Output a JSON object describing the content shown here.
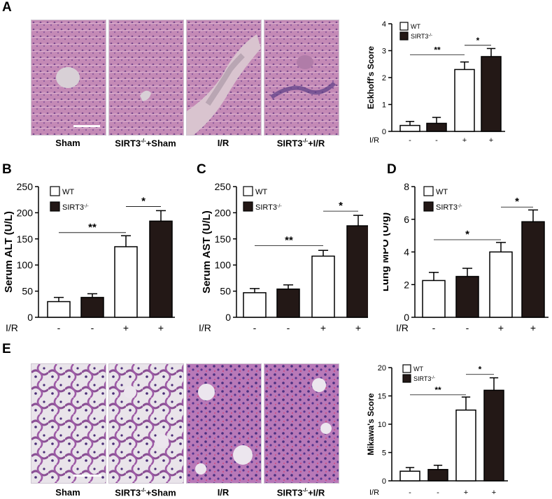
{
  "colors": {
    "wt_fill": "#ffffff",
    "ko_fill": "#231816",
    "he_liver": "#b55a9c",
    "he_lung": "#ede4ec"
  },
  "panels": {
    "A": {
      "letter": "A",
      "images": [
        {
          "label_main": "Sham",
          "label_sup": "",
          "label_after": ""
        },
        {
          "label_main": "SIRT3",
          "label_sup": "-/-",
          "label_after": "+Sham"
        },
        {
          "label_main": "I/R",
          "label_sup": "",
          "label_after": ""
        },
        {
          "label_main": "SIRT3",
          "label_sup": "-/-",
          "label_after": "+I/R"
        }
      ]
    },
    "B": {
      "letter": "B"
    },
    "C": {
      "letter": "C"
    },
    "D": {
      "letter": "D"
    },
    "E": {
      "letter": "E",
      "images": [
        {
          "label_main": "Sham",
          "label_sup": "",
          "label_after": ""
        },
        {
          "label_main": "SIRT3",
          "label_sup": "-/-",
          "label_after": "+Sham"
        },
        {
          "label_main": "I/R",
          "label_sup": "",
          "label_after": ""
        },
        {
          "label_main": "SIRT3",
          "label_sup": "-/-",
          "label_after": "+I/R"
        }
      ]
    }
  },
  "chart_data": [
    {
      "id": "A",
      "type": "bar",
      "ylabel": "Eckhoff's Score",
      "ylim": [
        0,
        4
      ],
      "yticks": [
        "0",
        "1",
        "2",
        "3",
        "4"
      ],
      "ytick_values": [
        0,
        1,
        2,
        3,
        4
      ],
      "row_label": "I/R",
      "categories": [
        "-",
        "-",
        "+",
        "+"
      ],
      "values": [
        0.22,
        0.3,
        2.3,
        2.78
      ],
      "errors": [
        0.15,
        0.22,
        0.28,
        0.3
      ],
      "groups": [
        "WT",
        "SIRT3",
        "WT",
        "SIRT3"
      ],
      "legend": [
        {
          "name": "WT",
          "sup": ""
        },
        {
          "name": "SIRT3",
          "sup": "-/-"
        }
      ],
      "significance": [
        {
          "from": 0,
          "to": 2,
          "label": "**",
          "y": 2.85
        },
        {
          "from": 2,
          "to": 3,
          "label": "*",
          "y": 3.2
        }
      ]
    },
    {
      "id": "B",
      "type": "bar",
      "ylabel": "Serum ALT (U/L)",
      "ylim": [
        0,
        250
      ],
      "yticks": [
        "0",
        "50",
        "100",
        "150",
        "200",
        "250"
      ],
      "ytick_values": [
        0,
        50,
        100,
        150,
        200,
        250
      ],
      "row_label": "I/R",
      "categories": [
        "-",
        "-",
        "+",
        "+"
      ],
      "values": [
        30,
        38,
        135,
        184
      ],
      "errors": [
        8,
        7,
        21,
        20
      ],
      "groups": [
        "WT",
        "SIRT3",
        "WT",
        "SIRT3"
      ],
      "legend": [
        {
          "name": "WT",
          "sup": ""
        },
        {
          "name": "SIRT3",
          "sup": "-/-"
        }
      ],
      "significance": [
        {
          "from": 0,
          "to": 2,
          "label": "**",
          "y": 162
        },
        {
          "from": 2,
          "to": 3,
          "label": "*",
          "y": 212
        }
      ]
    },
    {
      "id": "C",
      "type": "bar",
      "ylabel": "Serum AST (U/L)",
      "ylim": [
        0,
        250
      ],
      "yticks": [
        "0",
        "50",
        "100",
        "150",
        "200",
        "250"
      ],
      "ytick_values": [
        0,
        50,
        100,
        150,
        200,
        250
      ],
      "row_label": "I/R",
      "categories": [
        "-",
        "-",
        "+",
        "+"
      ],
      "values": [
        47,
        54,
        117,
        175
      ],
      "errors": [
        8,
        8,
        11,
        20
      ],
      "groups": [
        "WT",
        "SIRT3",
        "WT",
        "SIRT3"
      ],
      "legend": [
        {
          "name": "WT",
          "sup": ""
        },
        {
          "name": "SIRT3",
          "sup": "-/-"
        }
      ],
      "significance": [
        {
          "from": 0,
          "to": 2,
          "label": "**",
          "y": 137
        },
        {
          "from": 2,
          "to": 3,
          "label": "*",
          "y": 203
        }
      ]
    },
    {
      "id": "D",
      "type": "bar",
      "ylabel": "Lung MPO (U/g)",
      "ylim": [
        0,
        8
      ],
      "yticks": [
        "0",
        "2",
        "4",
        "6",
        "8"
      ],
      "ytick_values": [
        0,
        2,
        4,
        6,
        8
      ],
      "row_label": "I/R",
      "categories": [
        "-",
        "-",
        "+",
        "+"
      ],
      "values": [
        2.25,
        2.5,
        4.0,
        5.85
      ],
      "errors": [
        0.5,
        0.5,
        0.58,
        0.72
      ],
      "groups": [
        "WT",
        "SIRT3",
        "WT",
        "SIRT3"
      ],
      "legend": [
        {
          "name": "WT",
          "sup": ""
        },
        {
          "name": "SIRT3",
          "sup": "-/-"
        }
      ],
      "significance": [
        {
          "from": 0,
          "to": 2,
          "label": "*",
          "y": 4.75
        },
        {
          "from": 2,
          "to": 3,
          "label": "*",
          "y": 6.75
        }
      ]
    },
    {
      "id": "E",
      "type": "bar",
      "ylabel": "Mikawa's Score",
      "ylim": [
        0,
        20
      ],
      "yticks": [
        "0",
        "5",
        "10",
        "15",
        "20"
      ],
      "ytick_values": [
        0,
        5,
        10,
        15,
        20
      ],
      "row_label": "I/R",
      "categories": [
        "-",
        "-",
        "+",
        "+"
      ],
      "values": [
        1.7,
        2.0,
        12.5,
        16.0
      ],
      "errors": [
        0.65,
        0.75,
        2.3,
        2.2
      ],
      "groups": [
        "WT",
        "SIRT3",
        "WT",
        "SIRT3"
      ],
      "legend": [
        {
          "name": "WT",
          "sup": ""
        },
        {
          "name": "SIRT3",
          "sup": "-/-"
        }
      ],
      "significance": [
        {
          "from": 0,
          "to": 2,
          "label": "**",
          "y": 15.2
        },
        {
          "from": 2,
          "to": 3,
          "label": "*",
          "y": 18.8
        }
      ]
    }
  ]
}
